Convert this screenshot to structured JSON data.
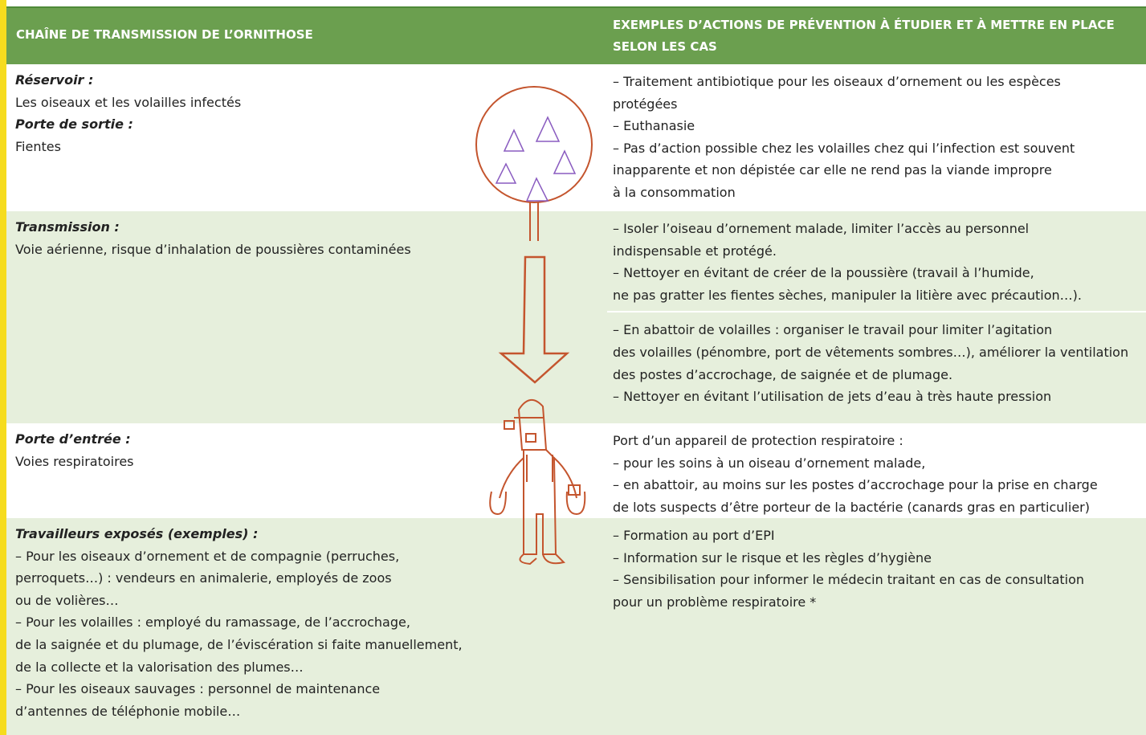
{
  "header": {
    "left": "CHAÎNE DE TRANSMISSION DE L’ORNITHOSE",
    "right": [
      "EXEMPLES D’ACTIONS DE PRÉVENTION À ÉTUDIER ET À METTRE EN PLACE",
      "SELON LES CAS"
    ]
  },
  "rows": [
    {
      "left": [
        {
          "heading": "Réservoir :",
          "lines": [
            "Les oiseaux et les volailles infectés"
          ]
        },
        {
          "heading": "Porte de sortie :",
          "lines": [
            "Fientes"
          ]
        }
      ],
      "right": [
        [
          "– Traitement antibiotique pour les oiseaux d’ornement ou les espèces",
          "protégées",
          "– Euthanasie",
          "– Pas d’action possible chez les volailles chez qui l’infection est souvent",
          "inapparente et non dépistée car elle ne rend pas la viande impropre",
          "à la consommation"
        ]
      ]
    },
    {
      "left": [
        {
          "heading": "Transmission :",
          "lines": [
            "Voie aérienne, risque d’inhalation de poussières contaminées"
          ]
        }
      ],
      "right": [
        [
          "– Isoler l’oiseau d’ornement malade, limiter l’accès au personnel",
          "indispensable et protégé.",
          "– Nettoyer en évitant de créer de la poussière (travail à l’humide,",
          "ne pas gratter les fientes sèches, manipuler la litière avec précaution…)."
        ],
        [
          "– En abattoir de volailles : organiser le travail pour limiter l’agitation",
          "des volailles (pénombre, port de vêtements sombres…), améliorer la ventilation",
          "des postes d’accrochage, de saignée et de plumage.",
          "– Nettoyer en évitant l’utilisation de jets d’eau à très haute pression"
        ]
      ]
    },
    {
      "left": [
        {
          "heading": "Porte d’entrée :",
          "lines": [
            "Voies respiratoires"
          ]
        }
      ],
      "right": [
        [
          "Port d’un appareil de protection respiratoire :",
          "– pour les soins à un oiseau d’ornement malade,",
          "– en abattoir, au moins sur les postes d’accrochage pour la prise en charge",
          "de lots suspects d’être porteur de la bactérie (canards gras en particulier)"
        ]
      ]
    },
    {
      "left": [
        {
          "heading": "Travailleurs exposés (exemples) :",
          "lines": [
            "– Pour les oiseaux d’ornement et de compagnie (perruches,",
            "perroquets…) : vendeurs en animalerie, employés de zoos",
            "ou de volières…",
            "– Pour les volailles : employé du ramassage, de l’accrochage,",
            "de la saignée et du plumage, de l’éviscération si faite manuellement,",
            "de la collecte et la valorisation des plumes…",
            "– Pour les oiseaux sauvages : personnel de maintenance",
            "d’antennes de téléphonie mobile…"
          ]
        }
      ],
      "right": [
        [
          "– Formation au port d’EPI",
          "– Information sur le risque et les règles d’hygiène",
          "– Sensibilisation pour informer le médecin traitant en cas de consultation",
          "pour un problème respiratoire *"
        ]
      ]
    }
  ]
}
